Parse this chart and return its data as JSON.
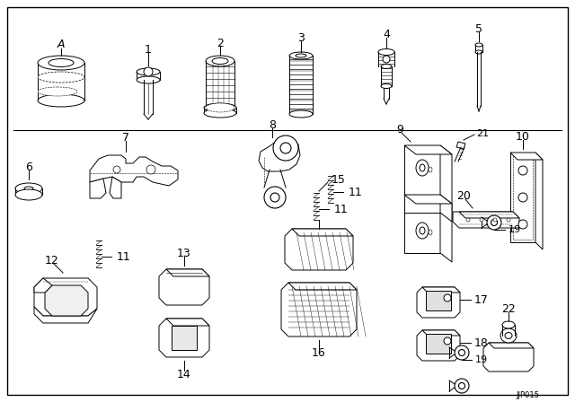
{
  "background_color": "#ffffff",
  "line_color": "#000000",
  "text_color": "#000000",
  "font_size": 8,
  "watermark": "JJP015",
  "fig_width": 6.4,
  "fig_height": 4.48,
  "dpi": 100
}
